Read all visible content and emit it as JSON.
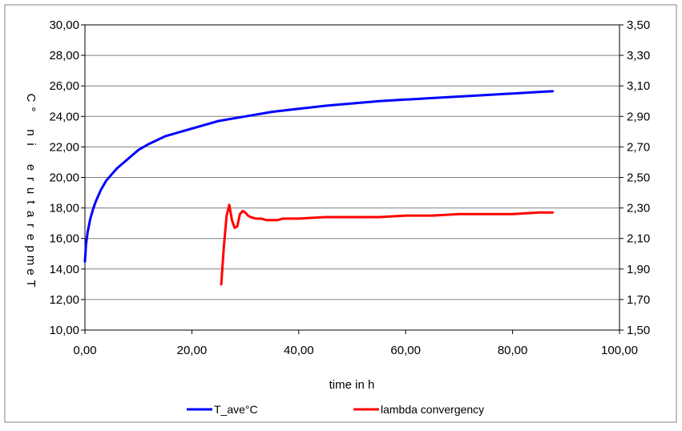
{
  "chart_data": {
    "type": "line",
    "xlabel": "time in h",
    "ylabel": "Temperature in °C",
    "xlim": [
      0,
      100
    ],
    "ylim_left": [
      10,
      30
    ],
    "ylim_right": [
      1.5,
      3.5
    ],
    "x_ticks": [
      "0,00",
      "20,00",
      "40,00",
      "60,00",
      "80,00",
      "100,00"
    ],
    "y_left_ticks": [
      "10,00",
      "12,00",
      "14,00",
      "16,00",
      "18,00",
      "20,00",
      "22,00",
      "24,00",
      "26,00",
      "28,00",
      "30,00"
    ],
    "y_right_ticks": [
      "1,50",
      "1,70",
      "1,90",
      "2,10",
      "2,30",
      "2,50",
      "2,70",
      "2,90",
      "3,10",
      "3,30",
      "3,50"
    ],
    "grid": "horizontal",
    "legend_position": "bottom",
    "series": [
      {
        "name": "T_ave°C",
        "axis": "left",
        "color": "#0000ff",
        "x": [
          0,
          0.2,
          0.5,
          1,
          1.5,
          2,
          3,
          4,
          5,
          6,
          8,
          10,
          12,
          15,
          18,
          20,
          25,
          30,
          35,
          40,
          45,
          50,
          55,
          60,
          65,
          70,
          75,
          80,
          85,
          87.5
        ],
        "y": [
          14.5,
          15.6,
          16.4,
          17.3,
          17.9,
          18.4,
          19.2,
          19.8,
          20.2,
          20.6,
          21.2,
          21.8,
          22.2,
          22.7,
          23.0,
          23.2,
          23.7,
          24.0,
          24.3,
          24.5,
          24.7,
          24.85,
          25.0,
          25.1,
          25.2,
          25.3,
          25.4,
          25.5,
          25.6,
          25.65
        ]
      },
      {
        "name": "lambda convergency",
        "axis": "right",
        "color": "#ff0000",
        "x": [
          25.5,
          26.0,
          26.5,
          27.0,
          27.5,
          28.0,
          28.5,
          29.0,
          29.5,
          30.0,
          30.5,
          31.0,
          32.0,
          33.0,
          34.0,
          35.0,
          36.0,
          37.0,
          38.0,
          40.0,
          45.0,
          50.0,
          55.0,
          60.0,
          65.0,
          70.0,
          75.0,
          80.0,
          85.0,
          87.5
        ],
        "y": [
          1.8,
          2.05,
          2.25,
          2.32,
          2.22,
          2.17,
          2.18,
          2.26,
          2.28,
          2.27,
          2.25,
          2.24,
          2.23,
          2.23,
          2.22,
          2.22,
          2.22,
          2.23,
          2.23,
          2.23,
          2.24,
          2.24,
          2.24,
          2.25,
          2.25,
          2.26,
          2.26,
          2.26,
          2.27,
          2.27
        ]
      }
    ]
  }
}
